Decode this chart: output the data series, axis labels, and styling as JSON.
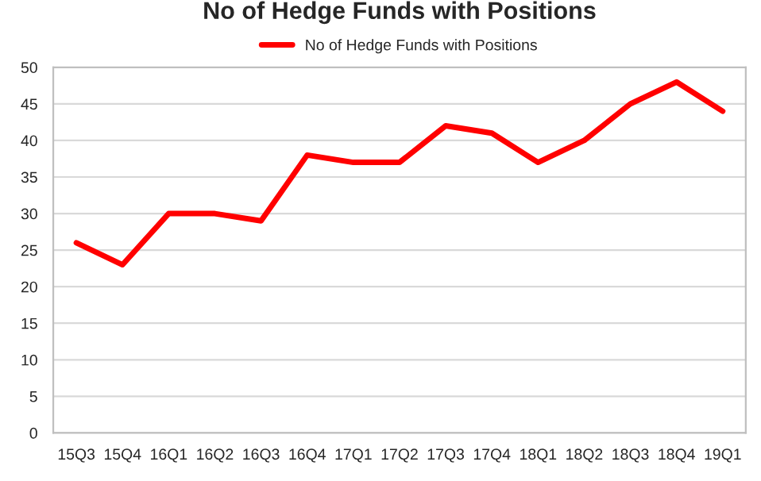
{
  "chart_data": {
    "type": "line",
    "title": "No of Hedge Funds with Positions",
    "categories": [
      "15Q3",
      "15Q4",
      "16Q1",
      "16Q2",
      "16Q3",
      "16Q4",
      "17Q1",
      "17Q2",
      "17Q3",
      "17Q4",
      "18Q1",
      "18Q2",
      "18Q3",
      "18Q4",
      "19Q1"
    ],
    "series": [
      {
        "name": "No of Hedge Funds with Positions",
        "color": "#ff0000",
        "values": [
          26,
          23,
          30,
          30,
          29,
          38,
          37,
          37,
          42,
          41,
          37,
          40,
          45,
          48,
          44
        ]
      }
    ],
    "ylim": [
      0,
      50
    ],
    "yticks": [
      0,
      5,
      10,
      15,
      20,
      25,
      30,
      35,
      40,
      45,
      50
    ],
    "grid": "y",
    "legend": "top",
    "marker": "none",
    "line_style": "solid"
  }
}
